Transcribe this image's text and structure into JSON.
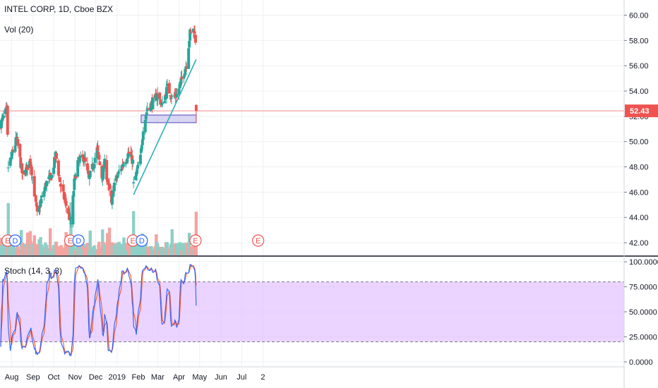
{
  "header": {
    "symbol_title": "INTEL CORP, 1D, Cboe BZX",
    "volume_label": "Vol (20)",
    "stoch_label": "Stoch (14, 3, 3)"
  },
  "colors": {
    "up": "#26a69a",
    "down": "#ef5350",
    "vol_up": "#8fcfc7",
    "vol_down": "#f3a4a1",
    "trendline": "#2db0b5",
    "zone_fill": "#b8b4ea",
    "zone_stroke": "#6a60c8",
    "price_line": "#f28b8b",
    "stoch_k": "#2962ff",
    "stoch_d": "#ff5722",
    "stoch_band": "#e2c2ff",
    "earnings_badge": "#ef5350",
    "dividend_badge": "#2962ff"
  },
  "chart_data": {
    "type": "candlestick",
    "title": "INTEL CORP, 1D, Cboe BZX",
    "price_axis": {
      "ticks": [
        "60.00",
        "58.00",
        "56.00",
        "54.00",
        "52.00",
        "50.00",
        "48.00",
        "46.00",
        "44.00",
        "42.00"
      ],
      "range": [
        41.0,
        61.2
      ]
    },
    "last_price": {
      "label": "52.43",
      "value": 52.43
    },
    "time_axis": {
      "labels": [
        "Aug",
        "Sep",
        "Oct",
        "Nov",
        "Dec",
        "2019",
        "Feb",
        "Mar",
        "Apr",
        "May",
        "Jun",
        "Jul",
        "2"
      ]
    },
    "price_anchors": [
      [
        "2018-07-16",
        51.4
      ],
      [
        "2018-07-25",
        52.6
      ],
      [
        "2018-07-27",
        48.0
      ],
      [
        "2018-08-06",
        49.8
      ],
      [
        "2018-08-08",
        50.3
      ],
      [
        "2018-08-17",
        47.2
      ],
      [
        "2018-08-28",
        48.5
      ],
      [
        "2018-09-07",
        44.2
      ],
      [
        "2018-09-20",
        46.7
      ],
      [
        "2018-09-28",
        47.3
      ],
      [
        "2018-10-04",
        49.0
      ],
      [
        "2018-10-11",
        46.5
      ],
      [
        "2018-10-24",
        44.0
      ],
      [
        "2018-10-26",
        43.5
      ],
      [
        "2018-10-31",
        46.8
      ],
      [
        "2018-11-05",
        48.4
      ],
      [
        "2018-11-14",
        48.8
      ],
      [
        "2018-11-21",
        47.0
      ],
      [
        "2018-11-28",
        48.3
      ],
      [
        "2018-12-03",
        49.4
      ],
      [
        "2018-12-10",
        47.2
      ],
      [
        "2018-12-14",
        48.3
      ],
      [
        "2018-12-24",
        45.0
      ],
      [
        "2018-12-28",
        46.7
      ],
      [
        "2019-01-09",
        48.2
      ],
      [
        "2019-01-18",
        49.1
      ],
      [
        "2019-01-24",
        48.4
      ],
      [
        "2019-01-25",
        46.6
      ],
      [
        "2019-02-04",
        48.7
      ],
      [
        "2019-02-08",
        51.1
      ],
      [
        "2019-02-14",
        52.6
      ],
      [
        "2019-02-22",
        53.1
      ],
      [
        "2019-03-01",
        53.7
      ],
      [
        "2019-03-08",
        52.8
      ],
      [
        "2019-03-15",
        54.3
      ],
      [
        "2019-03-22",
        53.5
      ],
      [
        "2019-03-29",
        53.7
      ],
      [
        "2019-04-05",
        54.9
      ],
      [
        "2019-04-12",
        56.2
      ],
      [
        "2019-04-17",
        58.6
      ],
      [
        "2019-04-23",
        58.9
      ],
      [
        "2019-04-25",
        58.0
      ]
    ],
    "after_earnings": {
      "date": "2019-04-26",
      "open": 52.9,
      "high": 52.95,
      "low": 51.5,
      "close": 52.43
    },
    "volume": {
      "label": "Vol (20)",
      "earnings_spikes": [
        "2018-07-27",
        "2018-10-26",
        "2019-01-25",
        "2019-04-26"
      ]
    },
    "events": [
      {
        "type": "earnings",
        "label": "E",
        "date": "2018-07-26"
      },
      {
        "type": "dividend",
        "label": "D",
        "date": "2018-08-06"
      },
      {
        "type": "earnings",
        "label": "E",
        "date": "2018-10-25"
      },
      {
        "type": "dividend",
        "label": "D",
        "date": "2018-11-06"
      },
      {
        "type": "earnings",
        "label": "E",
        "date": "2019-01-24"
      },
      {
        "type": "dividend",
        "label": "D",
        "date": "2019-02-06"
      },
      {
        "type": "earnings",
        "label": "E",
        "date": "2019-04-25"
      },
      {
        "type": "earnings",
        "label": "E",
        "date": "2019-07-25"
      }
    ],
    "drawings": {
      "trendline": {
        "from": [
          "2019-01-25",
          45.8
        ],
        "to": [
          "2019-04-26",
          56.5
        ]
      },
      "support_zone": {
        "from": "2019-02-05",
        "to": "2019-04-26",
        "low": 51.5,
        "high": 52.1
      }
    },
    "stochastic": {
      "label": "Stoch (14, 3, 3)",
      "ticks": [
        "100.0000",
        "75.0000",
        "50.0000",
        "25.0000",
        "0.0000"
      ],
      "range": [
        -5,
        105
      ],
      "upper_band": 80,
      "lower_band": 20
    }
  }
}
